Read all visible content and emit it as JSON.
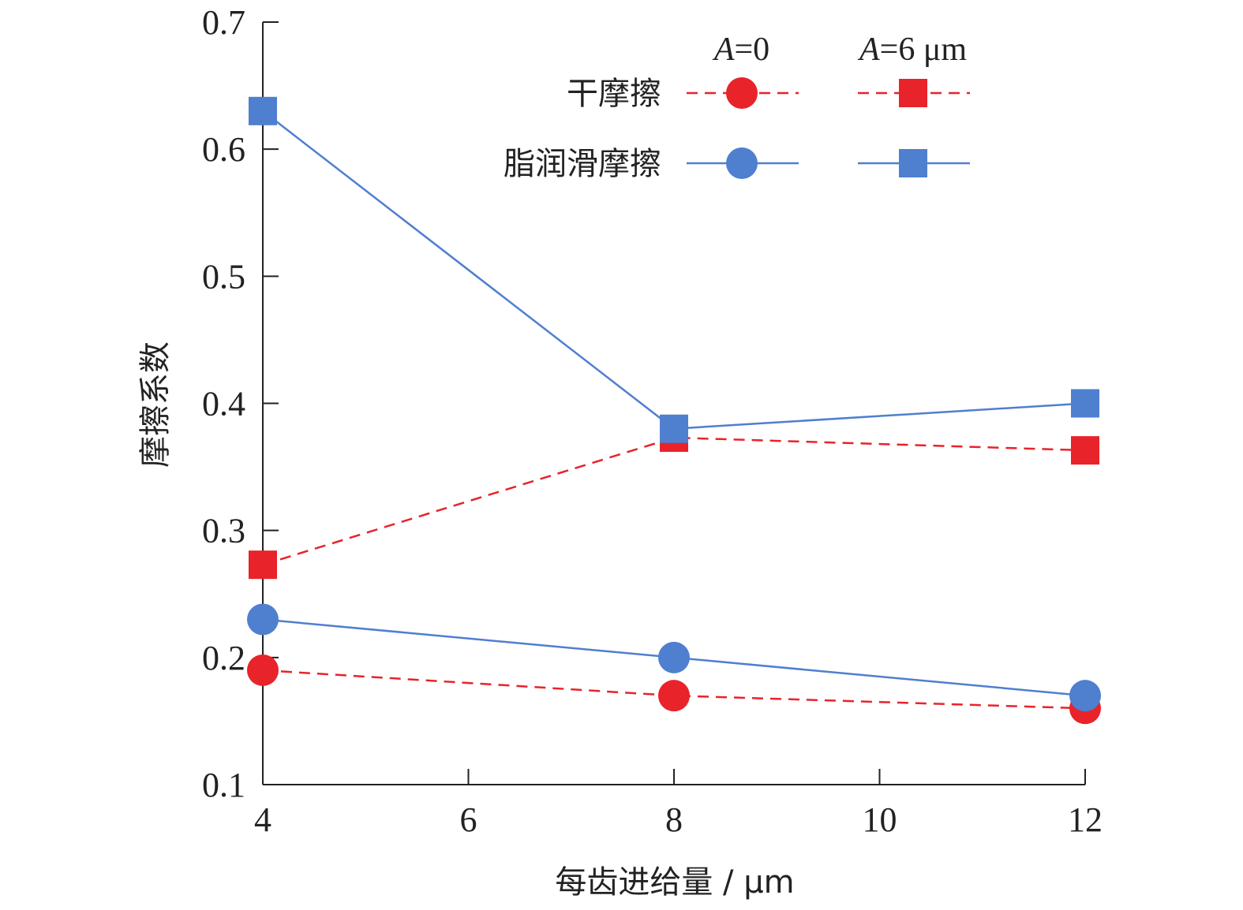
{
  "chart_data": {
    "type": "line",
    "xlabel": "每齿进给量 / μm",
    "ylabel": "摩擦系数",
    "xlim": [
      4,
      12
    ],
    "ylim": [
      0.1,
      0.7
    ],
    "x_ticks": [
      4,
      6,
      8,
      10,
      12
    ],
    "x_tick_labels": [
      "4",
      "6",
      "8",
      "10",
      "12"
    ],
    "y_ticks": [
      0.1,
      0.2,
      0.3,
      0.4,
      0.5,
      0.6,
      0.7
    ],
    "y_tick_labels": [
      "0.1",
      "0.2",
      "0.3",
      "0.4",
      "0.5",
      "0.6",
      "0.7"
    ],
    "grid": false,
    "legend": {
      "placement": "top-right",
      "col_headers": [
        {
          "var": "A",
          "text": "=0"
        },
        {
          "var": "A",
          "text": "=6 μm"
        }
      ],
      "row_labels": [
        "干摩擦",
        "脂润滑摩擦"
      ]
    },
    "series": [
      {
        "condition": "干摩擦",
        "amplitude": "A=0",
        "marker": "circle",
        "line": "dashed",
        "color": "#e8232a",
        "x": [
          4,
          8,
          12
        ],
        "y": [
          0.19,
          0.17,
          0.16
        ]
      },
      {
        "condition": "干摩擦",
        "amplitude": "A=6 μm",
        "marker": "square",
        "line": "dashed",
        "color": "#e8232a",
        "x": [
          4,
          8,
          12
        ],
        "y": [
          0.273,
          0.373,
          0.363
        ]
      },
      {
        "condition": "脂润滑摩擦",
        "amplitude": "A=0",
        "marker": "circle",
        "line": "solid",
        "color": "#4f7fcf",
        "x": [
          4,
          8,
          12
        ],
        "y": [
          0.23,
          0.2,
          0.17
        ]
      },
      {
        "condition": "脂润滑摩擦",
        "amplitude": "A=6 μm",
        "marker": "square",
        "line": "solid",
        "color": "#4f7fcf",
        "x": [
          4,
          8,
          12
        ],
        "y": [
          0.63,
          0.38,
          0.4
        ]
      }
    ]
  }
}
